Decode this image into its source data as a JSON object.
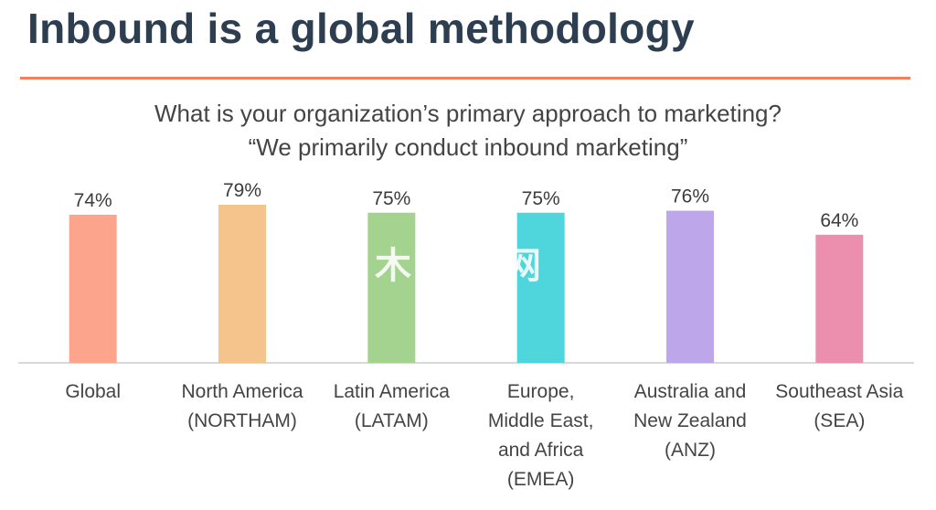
{
  "slide": {
    "title": "Inbound is a global methodology",
    "question_line1": "What is your organization’s primary approach to marketing?",
    "question_line2": "“We primarily conduct inbound marketing”",
    "accent_color": "#f47f5f",
    "title_color": "#2d3e50"
  },
  "watermark": {
    "text": "木 程网"
  },
  "chart_data": {
    "type": "bar",
    "categories": [
      [
        "Global"
      ],
      [
        "North America",
        "(NORTHAM)"
      ],
      [
        "Latin America",
        "(LATAM)"
      ],
      [
        "Europe,",
        "Middle East,",
        "and Africa",
        "(EMEA)"
      ],
      [
        "Australia and",
        "New Zealand",
        "(ANZ)"
      ],
      [
        "Southeast Asia",
        "(SEA)"
      ]
    ],
    "values": [
      74,
      79,
      75,
      75,
      76,
      64
    ],
    "value_labels": [
      "74%",
      "79%",
      "75%",
      "75%",
      "76%",
      "64%"
    ],
    "colors": [
      "#fca48c",
      "#f5c38c",
      "#a3d38e",
      "#4fd5dc",
      "#bea6ea",
      "#ec8eae"
    ],
    "ylim": [
      0,
      100
    ],
    "grid": false,
    "legend": "none",
    "xlabel": "",
    "ylabel": "",
    "baseline_color": "#cccccc"
  }
}
